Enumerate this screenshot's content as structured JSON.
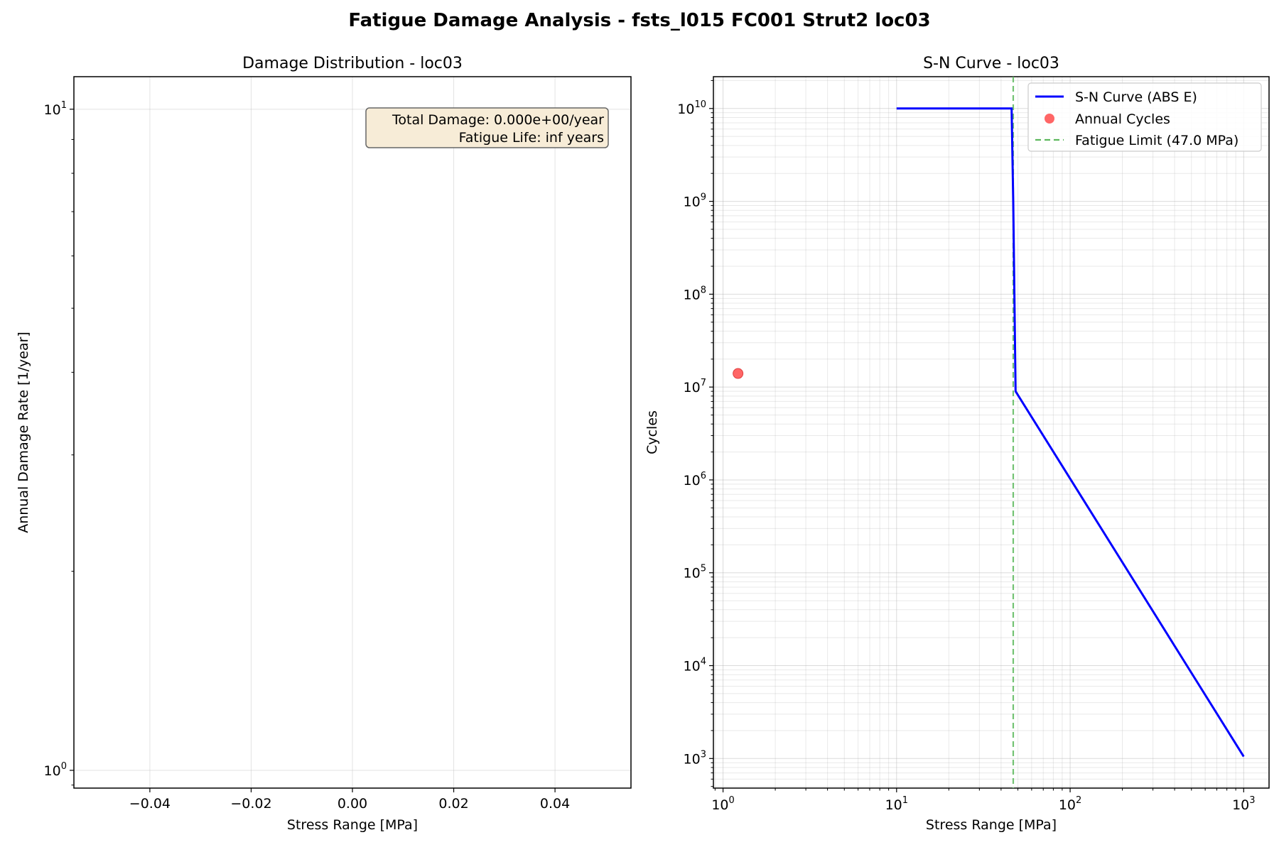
{
  "figure": {
    "title": "Fatigue Damage Analysis - fsts_l015 FC001 Strut2 loc03"
  },
  "chart_data": [
    {
      "type": "bar",
      "title": "Damage Distribution - loc03",
      "xlabel": "Stress Range [MPa]",
      "ylabel": "Annual Damage Rate [1/year]",
      "xlim": [
        -0.055,
        0.055
      ],
      "ylim": [
        0.94,
        11.2
      ],
      "yscale": "log",
      "grid": true,
      "xticks": [
        -0.04,
        -0.02,
        0.0,
        0.02,
        0.04
      ],
      "xtick_labels": [
        "−0.04",
        "−0.02",
        "0.00",
        "0.02",
        "0.04"
      ],
      "yticks": [
        {
          "value": 1,
          "base": "10",
          "exp": "0"
        },
        {
          "value": 10,
          "base": "10",
          "exp": "1"
        }
      ],
      "categories": [],
      "values": [],
      "annotation": {
        "lines": [
          "Total Damage: 0.000e+00/year",
          "Fatigue Life: inf years"
        ],
        "placement": "top-right",
        "background": "#f7ecd7"
      }
    },
    {
      "type": "line",
      "title": "S-N Curve - loc03",
      "xlabel": "Stress Range [MPa]",
      "ylabel": "Cycles",
      "xscale": "log",
      "yscale": "log",
      "xlim": [
        0.88,
        1400
      ],
      "ylim": [
        480,
        22000000000
      ],
      "grid": true,
      "xticks": [
        {
          "value": 1,
          "base": "10",
          "exp": "0"
        },
        {
          "value": 10,
          "base": "10",
          "exp": "1"
        },
        {
          "value": 100,
          "base": "10",
          "exp": "2"
        },
        {
          "value": 1000,
          "base": "10",
          "exp": "3"
        }
      ],
      "yticks": [
        {
          "value": 1000,
          "base": "10",
          "exp": "3"
        },
        {
          "value": 10000,
          "base": "10",
          "exp": "4"
        },
        {
          "value": 100000,
          "base": "10",
          "exp": "5"
        },
        {
          "value": 1000000,
          "base": "10",
          "exp": "6"
        },
        {
          "value": 10000000,
          "base": "10",
          "exp": "7"
        },
        {
          "value": 100000000,
          "base": "10",
          "exp": "8"
        },
        {
          "value": 1000000000,
          "base": "10",
          "exp": "9"
        },
        {
          "value": 10000000000,
          "base": "10",
          "exp": "10"
        }
      ],
      "legend_placement": "top-right",
      "series": [
        {
          "name": "S-N Curve (ABS E)",
          "kind": "line",
          "color": "#0000ff",
          "x": [
            10,
            46,
            47,
            48.5,
            1000
          ],
          "y": [
            10000000000,
            10000000000,
            1000000000,
            9000000,
            1050
          ]
        },
        {
          "name": "Annual Cycles",
          "kind": "scatter",
          "color": "#ff5555",
          "x": [
            1.22
          ],
          "y": [
            14000000
          ]
        },
        {
          "name": "Fatigue Limit (47.0 MPa)",
          "kind": "vline",
          "color": "#5cb85c",
          "x": [
            47.0
          ]
        }
      ]
    }
  ]
}
